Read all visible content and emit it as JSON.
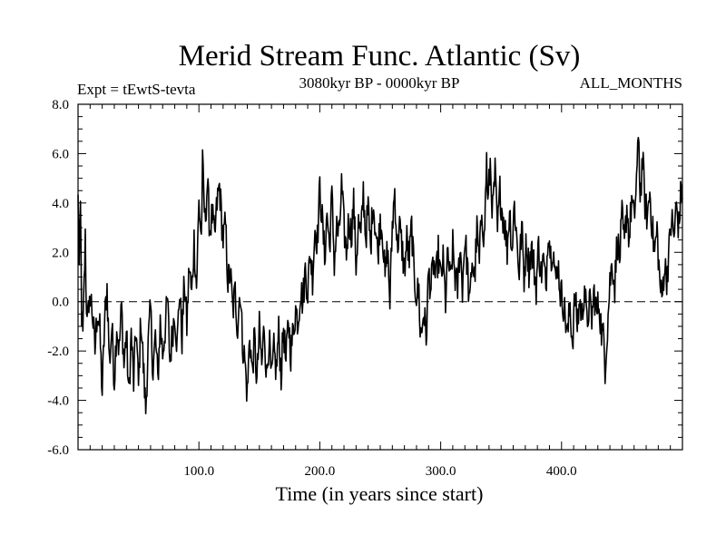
{
  "chart_data": {
    "type": "line",
    "title": "Merid Stream Func. Atlantic (Sv)",
    "subtitle_left": "Expt = tEwtS-tevta",
    "subtitle_center": "3080kyr BP - 0000kyr BP",
    "subtitle_right": "ALL_MONTHS",
    "xlabel": "Time (in years since start)",
    "ylabel": "",
    "xlim": [
      0,
      500
    ],
    "ylim": [
      -6,
      8
    ],
    "x_ticks": [
      100,
      200,
      300,
      400
    ],
    "x_tick_labels": [
      "100.0",
      "200.0",
      "300.0",
      "400.0"
    ],
    "y_ticks": [
      -6,
      -4,
      -2,
      0,
      2,
      4,
      6,
      8
    ],
    "y_tick_labels": [
      "-6.0",
      "-4.0",
      "-2.0",
      "0.0",
      "2.0",
      "4.0",
      "6.0",
      "8.0"
    ],
    "reference_line": {
      "y": 0,
      "style": "dashed"
    },
    "series": [
      {
        "name": "Merid Stream Func. Atlantic",
        "color": "#000000",
        "keypoints": [
          [
            0,
            4.1
          ],
          [
            1,
            1.3
          ],
          [
            2,
            3.8
          ],
          [
            3,
            -0.5
          ],
          [
            4,
            -1.5
          ],
          [
            5,
            0.6
          ],
          [
            6,
            2.5
          ],
          [
            7,
            -0.6
          ],
          [
            8,
            0.2
          ],
          [
            9,
            -1.0
          ],
          [
            10,
            0.4
          ],
          [
            12,
            -0.5
          ],
          [
            14,
            -2.0
          ],
          [
            16,
            -0.3
          ],
          [
            18,
            -1.2
          ],
          [
            20,
            -3.7
          ],
          [
            22,
            -0.8
          ],
          [
            24,
            0.6
          ],
          [
            26,
            -2.5
          ],
          [
            28,
            -1.0
          ],
          [
            30,
            -3.2
          ],
          [
            32,
            -0.9
          ],
          [
            34,
            -2.0
          ],
          [
            36,
            -0.2
          ],
          [
            38,
            -2.6
          ],
          [
            40,
            -1.2
          ],
          [
            42,
            -3.9
          ],
          [
            44,
            -1.3
          ],
          [
            46,
            -3.3
          ],
          [
            48,
            -1.0
          ],
          [
            50,
            -3.5
          ],
          [
            52,
            -0.6
          ],
          [
            54,
            -2.6
          ],
          [
            56,
            -4.4
          ],
          [
            58,
            -1.8
          ],
          [
            60,
            -0.3
          ],
          [
            62,
            -2.8
          ],
          [
            64,
            -1.4
          ],
          [
            66,
            -3.2
          ],
          [
            68,
            -0.8
          ],
          [
            70,
            -2.1
          ],
          [
            72,
            -1.1
          ],
          [
            74,
            0.1
          ],
          [
            76,
            -2.4
          ],
          [
            78,
            -1.3
          ],
          [
            80,
            -0.4
          ],
          [
            82,
            -1.8
          ],
          [
            84,
            0.5
          ],
          [
            86,
            -1.5
          ],
          [
            88,
            0.9
          ],
          [
            90,
            -1.0
          ],
          [
            92,
            1.5
          ],
          [
            94,
            0.2
          ],
          [
            96,
            2.5
          ],
          [
            98,
            0.6
          ],
          [
            100,
            4.0
          ],
          [
            102,
            2.6
          ],
          [
            103,
            5.5
          ],
          [
            105,
            3.2
          ],
          [
            107,
            4.8
          ],
          [
            109,
            2.9
          ],
          [
            111,
            3.5
          ],
          [
            113,
            2.5
          ],
          [
            115,
            4.0
          ],
          [
            117,
            4.7
          ],
          [
            119,
            3.2
          ],
          [
            120,
            2.5
          ],
          [
            122,
            3.1
          ],
          [
            124,
            0.8
          ],
          [
            126,
            1.2
          ],
          [
            128,
            -0.4
          ],
          [
            130,
            0.4
          ],
          [
            132,
            -1.1
          ],
          [
            134,
            0.6
          ],
          [
            136,
            -1.6
          ],
          [
            138,
            -2.4
          ],
          [
            140,
            -3.8
          ],
          [
            142,
            -1.3
          ],
          [
            144,
            -2.9
          ],
          [
            146,
            -1.5
          ],
          [
            148,
            -3.3
          ],
          [
            150,
            -1.1
          ],
          [
            152,
            -2.6
          ],
          [
            154,
            -0.9
          ],
          [
            156,
            -3.1
          ],
          [
            158,
            -1.4
          ],
          [
            160,
            -3.3
          ],
          [
            162,
            -2.0
          ],
          [
            164,
            -2.8
          ],
          [
            166,
            -1.2
          ],
          [
            168,
            -3.0
          ],
          [
            170,
            -1.0
          ],
          [
            172,
            -2.6
          ],
          [
            174,
            -0.7
          ],
          [
            176,
            -2.1
          ],
          [
            178,
            -1.2
          ],
          [
            180,
            -0.3
          ],
          [
            182,
            -0.8
          ],
          [
            184,
            0.5
          ],
          [
            186,
            0.0
          ],
          [
            188,
            1.3
          ],
          [
            190,
            0.4
          ],
          [
            192,
            2.0
          ],
          [
            194,
            1.0
          ],
          [
            196,
            3.0
          ],
          [
            198,
            2.5
          ],
          [
            200,
            4.6
          ],
          [
            202,
            3.3
          ],
          [
            204,
            1.8
          ],
          [
            206,
            3.6
          ],
          [
            208,
            2.2
          ],
          [
            210,
            4.3
          ],
          [
            212,
            1.6
          ],
          [
            214,
            3.0
          ],
          [
            216,
            2.6
          ],
          [
            218,
            4.7
          ],
          [
            220,
            3.0
          ],
          [
            222,
            2.0
          ],
          [
            224,
            3.4
          ],
          [
            226,
            2.7
          ],
          [
            228,
            4.0
          ],
          [
            230,
            1.5
          ],
          [
            232,
            3.2
          ],
          [
            234,
            2.5
          ],
          [
            236,
            4.5
          ],
          [
            238,
            2.6
          ],
          [
            240,
            3.8
          ],
          [
            242,
            2.1
          ],
          [
            244,
            4.2
          ],
          [
            246,
            3.0
          ],
          [
            248,
            1.9
          ],
          [
            250,
            3.4
          ],
          [
            252,
            2.8
          ],
          [
            254,
            0.9
          ],
          [
            256,
            2.2
          ],
          [
            258,
            0.0
          ],
          [
            260,
            3.1
          ],
          [
            262,
            4.5
          ],
          [
            264,
            2.2
          ],
          [
            266,
            3.0
          ],
          [
            268,
            2.2
          ],
          [
            270,
            1.3
          ],
          [
            272,
            2.5
          ],
          [
            274,
            1.7
          ],
          [
            276,
            3.1
          ],
          [
            278,
            1.0
          ],
          [
            280,
            0.3
          ],
          [
            282,
            0.4
          ],
          [
            283,
            -1.1
          ],
          [
            284,
            -1.4
          ],
          [
            286,
            -0.3
          ],
          [
            288,
            -1.5
          ],
          [
            290,
            1.2
          ],
          [
            292,
            0.5
          ],
          [
            294,
            1.6
          ],
          [
            296,
            0.8
          ],
          [
            298,
            2.0
          ],
          [
            300,
            0.9
          ],
          [
            302,
            1.6
          ],
          [
            304,
            0.0
          ],
          [
            306,
            2.0
          ],
          [
            308,
            0.7
          ],
          [
            310,
            2.2
          ],
          [
            312,
            1.0
          ],
          [
            314,
            0.5
          ],
          [
            316,
            2.3
          ],
          [
            318,
            0.6
          ],
          [
            320,
            2.6
          ],
          [
            322,
            1.5
          ],
          [
            324,
            -0.3
          ],
          [
            326,
            1.8
          ],
          [
            328,
            0.9
          ],
          [
            330,
            2.9
          ],
          [
            332,
            1.5
          ],
          [
            334,
            3.9
          ],
          [
            336,
            2.4
          ],
          [
            338,
            5.8
          ],
          [
            339,
            3.8
          ],
          [
            341,
            5.6
          ],
          [
            343,
            3.6
          ],
          [
            345,
            5.2
          ],
          [
            347,
            2.8
          ],
          [
            349,
            4.5
          ],
          [
            351,
            3.6
          ],
          [
            353,
            3.1
          ],
          [
            355,
            2.1
          ],
          [
            357,
            3.8
          ],
          [
            359,
            2.1
          ],
          [
            361,
            4.0
          ],
          [
            363,
            2.5
          ],
          [
            365,
            1.2
          ],
          [
            367,
            3.1
          ],
          [
            369,
            1.0
          ],
          [
            371,
            2.5
          ],
          [
            373,
            1.3
          ],
          [
            375,
            2.2
          ],
          [
            377,
            1.5
          ],
          [
            379,
            0.6
          ],
          [
            381,
            2.3
          ],
          [
            383,
            1.1
          ],
          [
            385,
            1.7
          ],
          [
            387,
            0.5
          ],
          [
            389,
            3.1
          ],
          [
            391,
            1.9
          ],
          [
            393,
            2.3
          ],
          [
            395,
            0.7
          ],
          [
            397,
            1.6
          ],
          [
            399,
            0.4
          ],
          [
            401,
            0.1
          ],
          [
            403,
            -0.6
          ],
          [
            405,
            -1.4
          ],
          [
            407,
            -0.1
          ],
          [
            409,
            -1.7
          ],
          [
            411,
            0.2
          ],
          [
            413,
            -0.9
          ],
          [
            415,
            0.0
          ],
          [
            417,
            -0.6
          ],
          [
            419,
            0.7
          ],
          [
            421,
            -1.0
          ],
          [
            423,
            0.0
          ],
          [
            425,
            -0.7
          ],
          [
            427,
            0.4
          ],
          [
            429,
            -0.5
          ],
          [
            431,
            0.0
          ],
          [
            433,
            -1.2
          ],
          [
            435,
            -1.6
          ],
          [
            436,
            -2.6
          ],
          [
            438,
            -1.0
          ],
          [
            440,
            0.8
          ],
          [
            442,
            1.6
          ],
          [
            444,
            0.6
          ],
          [
            446,
            2.6
          ],
          [
            448,
            1.7
          ],
          [
            450,
            3.4
          ],
          [
            452,
            2.2
          ],
          [
            454,
            3.9
          ],
          [
            456,
            2.5
          ],
          [
            458,
            4.2
          ],
          [
            460,
            3.2
          ],
          [
            462,
            5.0
          ],
          [
            464,
            6.6
          ],
          [
            465,
            4.2
          ],
          [
            467,
            5.8
          ],
          [
            469,
            4.0
          ],
          [
            471,
            3.4
          ],
          [
            473,
            4.5
          ],
          [
            475,
            3.0
          ],
          [
            477,
            2.0
          ],
          [
            479,
            2.9
          ],
          [
            481,
            1.0
          ],
          [
            483,
            0.0
          ],
          [
            485,
            1.5
          ],
          [
            487,
            1.0
          ],
          [
            489,
            2.1
          ],
          [
            491,
            3.4
          ],
          [
            493,
            2.6
          ],
          [
            495,
            3.9
          ],
          [
            497,
            3.0
          ],
          [
            499,
            4.6
          ],
          [
            500,
            4.4
          ]
        ]
      }
    ]
  }
}
